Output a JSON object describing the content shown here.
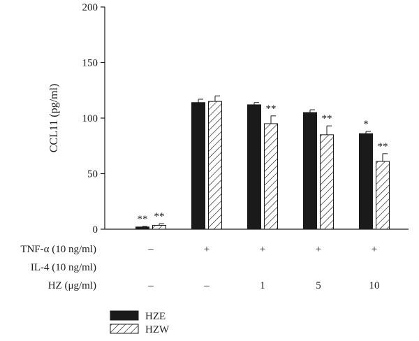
{
  "chart_data": {
    "type": "bar",
    "ylabel": "CCL11 (pg/ml)",
    "ylim": [
      0,
      200
    ],
    "yticks": [
      0,
      50,
      100,
      150,
      200
    ],
    "groups": 5,
    "series": [
      {
        "name": "HZE",
        "color": "#1a1a1a",
        "pattern": "solid",
        "values": [
          2,
          114,
          112,
          105,
          86
        ],
        "errors": [
          0.5,
          3,
          2,
          2.5,
          2
        ],
        "significance": [
          "**",
          "",
          "",
          "",
          "*"
        ]
      },
      {
        "name": "HZW",
        "color": "#1a1a1a",
        "pattern": "hatched",
        "values": [
          3.5,
          115,
          95,
          85,
          61
        ],
        "errors": [
          1.5,
          5,
          7,
          8,
          7
        ],
        "significance": [
          "**",
          "",
          "**",
          "**",
          "**"
        ]
      }
    ],
    "conditions": [
      {
        "label": "TNF-α (10 ng/ml)",
        "values": [
          "–",
          "+",
          "+",
          "+",
          "+"
        ]
      },
      {
        "label": "IL-4 (10 ng/ml)",
        "values": [
          "",
          "",
          "",
          "",
          ""
        ]
      },
      {
        "label": "HZ (μg/ml)",
        "values": [
          "–",
          "–",
          "1",
          "5",
          "10"
        ]
      }
    ],
    "legend_position": "bottom-left"
  }
}
